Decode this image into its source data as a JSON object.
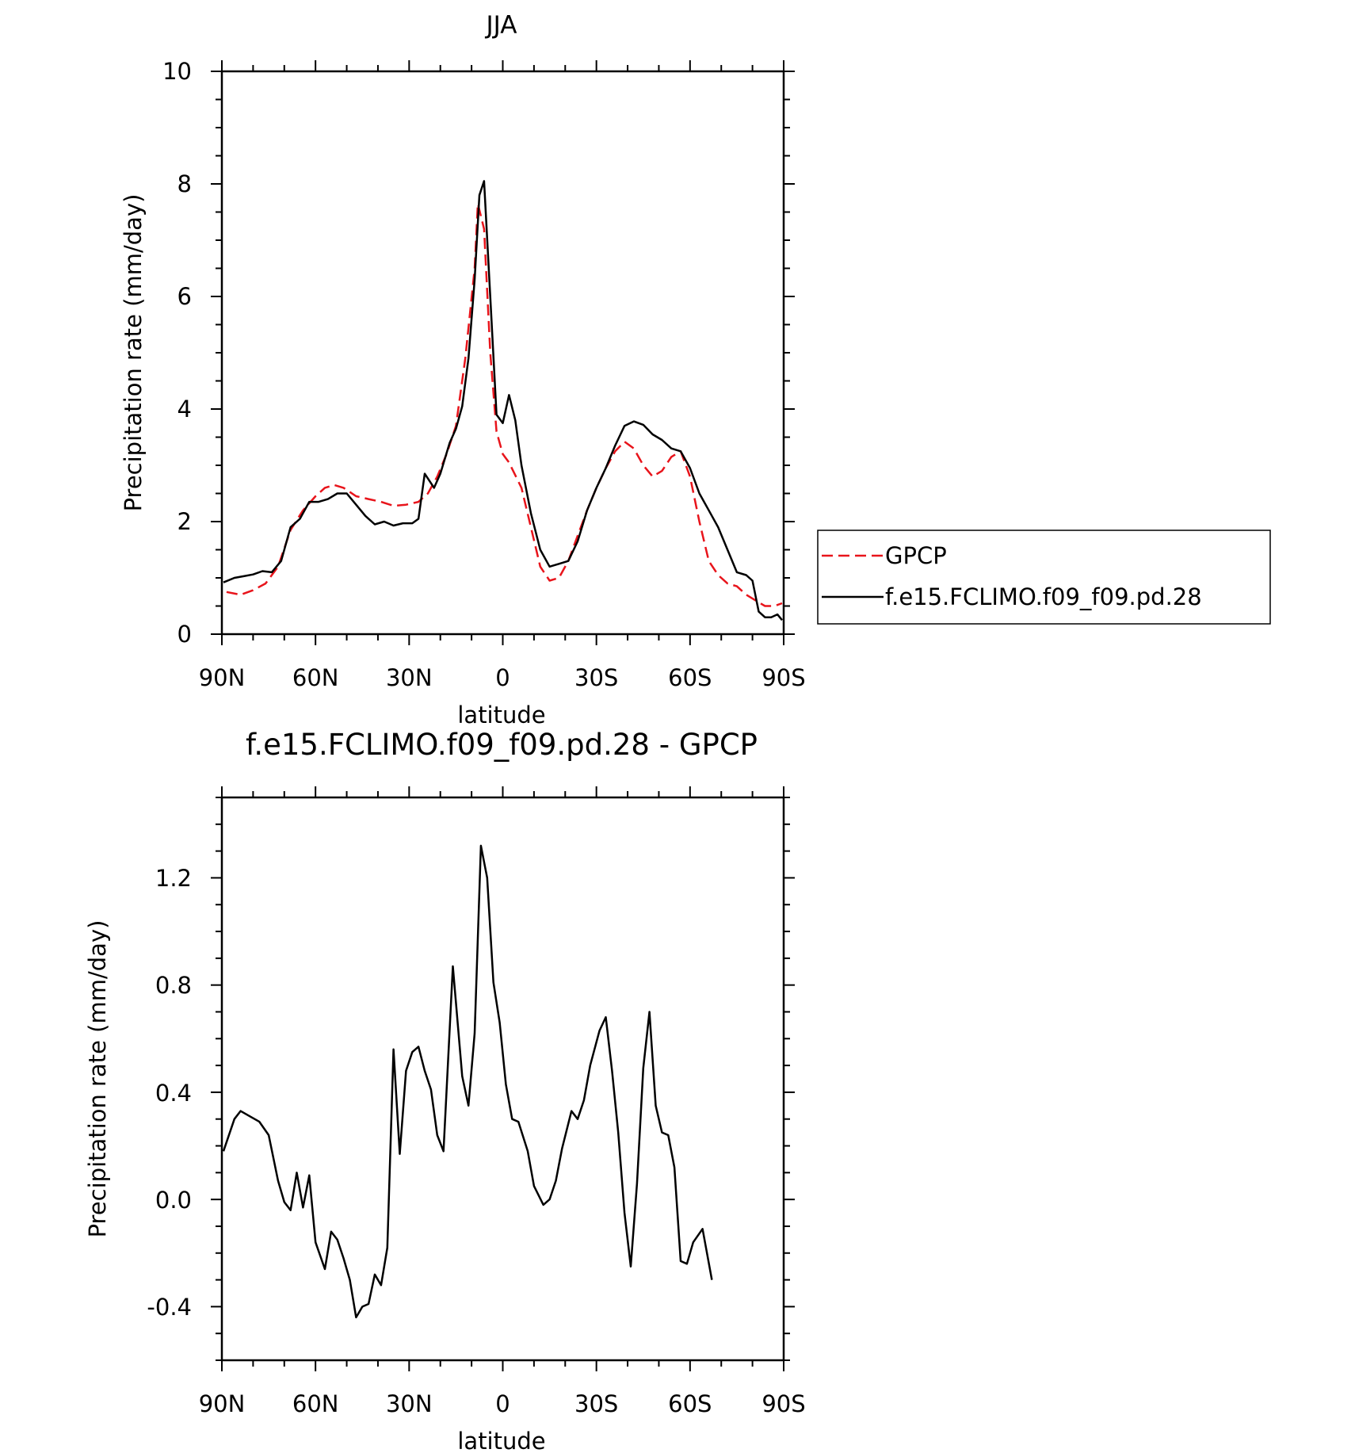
{
  "chart_data": [
    {
      "type": "line",
      "title": "JJA",
      "xlabel": "latitude",
      "ylabel": "Precipitation rate (mm/day)",
      "xlim": [
        90,
        -90
      ],
      "ylim": [
        0,
        10
      ],
      "x_ticks": [
        {
          "value": 90,
          "label": "90N"
        },
        {
          "value": 60,
          "label": "60N"
        },
        {
          "value": 30,
          "label": "30N"
        },
        {
          "value": 0,
          "label": "0"
        },
        {
          "value": -30,
          "label": "30S"
        },
        {
          "value": -60,
          "label": "60S"
        },
        {
          "value": -90,
          "label": "90S"
        }
      ],
      "y_ticks": [
        {
          "value": 0,
          "label": "0"
        },
        {
          "value": 2,
          "label": "2"
        },
        {
          "value": 4,
          "label": "4"
        },
        {
          "value": 6,
          "label": "6"
        },
        {
          "value": 8,
          "label": "8"
        },
        {
          "value": 10,
          "label": "10"
        }
      ],
      "grid": false,
      "legend_position": "right",
      "series": [
        {
          "name": "GPCP",
          "color": "#e8141b",
          "dash": "dashed",
          "points": [
            [
              88.5,
              0.75
            ],
            [
              84,
              0.7
            ],
            [
              80,
              0.78
            ],
            [
              76,
              0.9
            ],
            [
              72,
              1.2
            ],
            [
              68,
              1.85
            ],
            [
              64,
              2.2
            ],
            [
              60,
              2.45
            ],
            [
              57,
              2.6
            ],
            [
              54,
              2.65
            ],
            [
              51,
              2.6
            ],
            [
              47,
              2.45
            ],
            [
              43,
              2.4
            ],
            [
              39,
              2.35
            ],
            [
              35,
              2.28
            ],
            [
              31,
              2.3
            ],
            [
              27,
              2.35
            ],
            [
              24,
              2.5
            ],
            [
              21,
              2.8
            ],
            [
              18,
              3.2
            ],
            [
              15,
              3.7
            ],
            [
              12,
              4.9
            ],
            [
              9,
              6.5
            ],
            [
              8,
              7.65
            ],
            [
              6,
              7.2
            ],
            [
              4,
              5.0
            ],
            [
              2,
              3.6
            ],
            [
              0,
              3.2
            ],
            [
              -2,
              3.05
            ],
            [
              -6,
              2.6
            ],
            [
              -9,
              1.9
            ],
            [
              -12,
              1.2
            ],
            [
              -15,
              0.95
            ],
            [
              -18,
              1.0
            ],
            [
              -21,
              1.3
            ],
            [
              -24,
              1.75
            ],
            [
              -27,
              2.2
            ],
            [
              -30,
              2.6
            ],
            [
              -33,
              2.95
            ],
            [
              -36,
              3.25
            ],
            [
              -39,
              3.42
            ],
            [
              -42,
              3.3
            ],
            [
              -45,
              3.0
            ],
            [
              -48,
              2.8
            ],
            [
              -51,
              2.9
            ],
            [
              -54,
              3.15
            ],
            [
              -57,
              3.25
            ],
            [
              -60,
              2.8
            ],
            [
              -63,
              2.0
            ],
            [
              -66,
              1.3
            ],
            [
              -69,
              1.05
            ],
            [
              -72,
              0.9
            ],
            [
              -75,
              0.85
            ],
            [
              -78,
              0.7
            ],
            [
              -81,
              0.6
            ],
            [
              -84,
              0.5
            ],
            [
              -87,
              0.5
            ],
            [
              -89.5,
              0.55
            ]
          ]
        },
        {
          "name": "f.e15.FCLIMO.f09_f09.pd.28",
          "color": "#000000",
          "dash": "solid",
          "points": [
            [
              89.5,
              0.92
            ],
            [
              86,
              1.0
            ],
            [
              83,
              1.03
            ],
            [
              80,
              1.06
            ],
            [
              77,
              1.12
            ],
            [
              74,
              1.1
            ],
            [
              71,
              1.3
            ],
            [
              68,
              1.9
            ],
            [
              65,
              2.05
            ],
            [
              62,
              2.35
            ],
            [
              59,
              2.35
            ],
            [
              56,
              2.4
            ],
            [
              53,
              2.5
            ],
            [
              50,
              2.5
            ],
            [
              47,
              2.3
            ],
            [
              44,
              2.1
            ],
            [
              41,
              1.95
            ],
            [
              38,
              2.0
            ],
            [
              35,
              1.93
            ],
            [
              32,
              1.97
            ],
            [
              29,
              1.97
            ],
            [
              27,
              2.05
            ],
            [
              25,
              2.85
            ],
            [
              22,
              2.6
            ],
            [
              20,
              2.85
            ],
            [
              17,
              3.4
            ],
            [
              15,
              3.65
            ],
            [
              13,
              4.05
            ],
            [
              11,
              4.9
            ],
            [
              9,
              6.3
            ],
            [
              7.5,
              7.8
            ],
            [
              6,
              8.05
            ],
            [
              4,
              6.0
            ],
            [
              2,
              3.9
            ],
            [
              0,
              3.75
            ],
            [
              -2,
              4.25
            ],
            [
              -4,
              3.8
            ],
            [
              -6,
              3.0
            ],
            [
              -9,
              2.15
            ],
            [
              -12,
              1.5
            ],
            [
              -15,
              1.2
            ],
            [
              -18,
              1.25
            ],
            [
              -21,
              1.3
            ],
            [
              -24,
              1.65
            ],
            [
              -27,
              2.2
            ],
            [
              -30,
              2.6
            ],
            [
              -33,
              2.95
            ],
            [
              -36,
              3.35
            ],
            [
              -39,
              3.7
            ],
            [
              -42,
              3.78
            ],
            [
              -45,
              3.72
            ],
            [
              -48,
              3.55
            ],
            [
              -51,
              3.45
            ],
            [
              -54,
              3.3
            ],
            [
              -57,
              3.25
            ],
            [
              -60,
              2.95
            ],
            [
              -63,
              2.5
            ],
            [
              -66,
              2.2
            ],
            [
              -69,
              1.9
            ],
            [
              -72,
              1.5
            ],
            [
              -75,
              1.1
            ],
            [
              -78,
              1.05
            ],
            [
              -80,
              0.95
            ],
            [
              -82,
              0.4
            ],
            [
              -84,
              0.3
            ],
            [
              -86,
              0.3
            ],
            [
              -88,
              0.35
            ],
            [
              -89.5,
              0.25
            ]
          ]
        }
      ]
    },
    {
      "type": "line",
      "title": "f.e15.FCLIMO.f09_f09.pd.28 - GPCP",
      "xlabel": "latitude",
      "ylabel": "Precipitation rate (mm/day)",
      "xlim": [
        90,
        -90
      ],
      "ylim": [
        -0.6,
        1.5
      ],
      "x_ticks": [
        {
          "value": 90,
          "label": "90N"
        },
        {
          "value": 60,
          "label": "60N"
        },
        {
          "value": 30,
          "label": "30N"
        },
        {
          "value": 0,
          "label": "0"
        },
        {
          "value": -30,
          "label": "30S"
        },
        {
          "value": -60,
          "label": "60S"
        },
        {
          "value": -90,
          "label": "90S"
        }
      ],
      "y_ticks": [
        {
          "value": -0.4,
          "label": "-0.4"
        },
        {
          "value": 0.0,
          "label": "0.0"
        },
        {
          "value": 0.4,
          "label": "0.4"
        },
        {
          "value": 0.8,
          "label": "0.8"
        },
        {
          "value": 1.2,
          "label": "1.2"
        }
      ],
      "grid": false,
      "series": [
        {
          "color": "#000000",
          "dash": "solid",
          "points": [
            [
              89.5,
              0.18
            ],
            [
              86,
              0.3
            ],
            [
              84,
              0.33
            ],
            [
              81,
              0.31
            ],
            [
              78,
              0.29
            ],
            [
              75,
              0.24
            ],
            [
              72,
              0.07
            ],
            [
              70,
              -0.01
            ],
            [
              68,
              -0.04
            ],
            [
              66,
              0.1
            ],
            [
              64,
              -0.03
            ],
            [
              62,
              0.09
            ],
            [
              60,
              -0.16
            ],
            [
              57,
              -0.26
            ],
            [
              55,
              -0.12
            ],
            [
              53,
              -0.15
            ],
            [
              51,
              -0.22
            ],
            [
              49,
              -0.3
            ],
            [
              47,
              -0.44
            ],
            [
              45,
              -0.4
            ],
            [
              43,
              -0.39
            ],
            [
              41,
              -0.28
            ],
            [
              39,
              -0.32
            ],
            [
              37,
              -0.18
            ],
            [
              35,
              0.56
            ],
            [
              33,
              0.17
            ],
            [
              31,
              0.48
            ],
            [
              29,
              0.55
            ],
            [
              27,
              0.57
            ],
            [
              25,
              0.48
            ],
            [
              23,
              0.41
            ],
            [
              21,
              0.24
            ],
            [
              19,
              0.18
            ],
            [
              16,
              0.87
            ],
            [
              13,
              0.46
            ],
            [
              11,
              0.35
            ],
            [
              9,
              0.62
            ],
            [
              7,
              1.32
            ],
            [
              5,
              1.2
            ],
            [
              3,
              0.81
            ],
            [
              1,
              0.66
            ],
            [
              -1,
              0.43
            ],
            [
              -3,
              0.3
            ],
            [
              -5,
              0.29
            ],
            [
              -8,
              0.18
            ],
            [
              -10,
              0.05
            ],
            [
              -13,
              -0.02
            ],
            [
              -15,
              0.0
            ],
            [
              -17,
              0.07
            ],
            [
              -19,
              0.19
            ],
            [
              -22,
              0.33
            ],
            [
              -24,
              0.3
            ],
            [
              -26,
              0.37
            ],
            [
              -28,
              0.5
            ],
            [
              -31,
              0.63
            ],
            [
              -33,
              0.68
            ],
            [
              -35,
              0.48
            ],
            [
              -37,
              0.25
            ],
            [
              -39,
              -0.05
            ],
            [
              -41,
              -0.25
            ],
            [
              -43,
              0.06
            ],
            [
              -45,
              0.49
            ],
            [
              -47,
              0.7
            ],
            [
              -49,
              0.35
            ],
            [
              -51,
              0.25
            ],
            [
              -53,
              0.24
            ],
            [
              -55,
              0.12
            ],
            [
              -57,
              -0.23
            ],
            [
              -59,
              -0.24
            ],
            [
              -61,
              -0.16
            ],
            [
              -64,
              -0.11
            ],
            [
              -67,
              -0.3
            ]
          ]
        }
      ]
    }
  ]
}
